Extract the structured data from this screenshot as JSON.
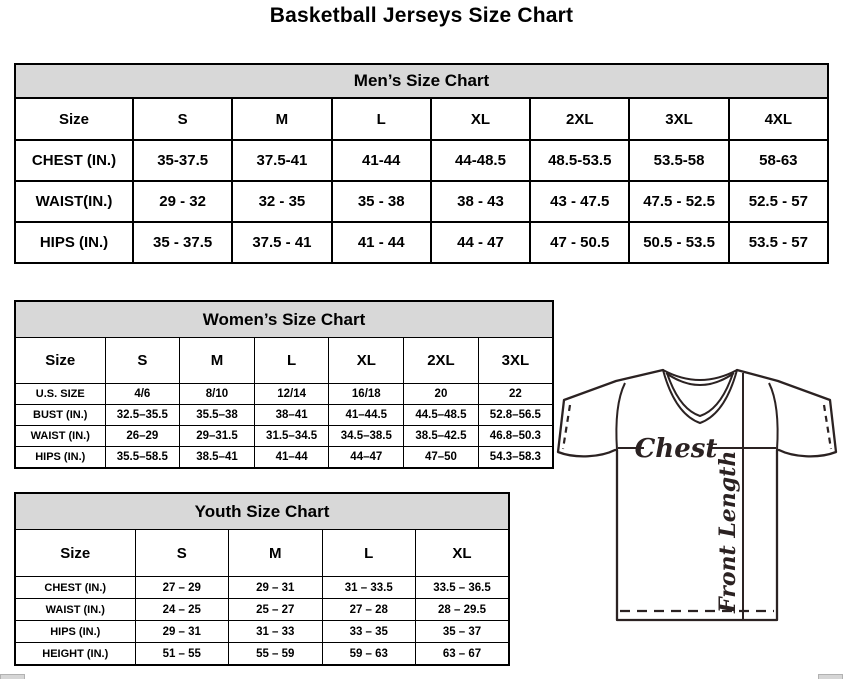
{
  "page_title": "Basketball Jerseys Size Chart",
  "tables": [
    {
      "id": "mens",
      "title": "Men’s Size Chart",
      "columns": [
        "Size",
        "S",
        "M",
        "L",
        "XL",
        "2XL",
        "3XL",
        "4XL"
      ],
      "rows": [
        {
          "label": "CHEST (IN.)",
          "values": [
            "35-37.5",
            "37.5-41",
            "41-44",
            "44-48.5",
            "48.5-53.5",
            "53.5-58",
            "58-63"
          ]
        },
        {
          "label": "WAIST(IN.)",
          "values": [
            "29 - 32",
            "32 - 35",
            "35 - 38",
            "38 - 43",
            "43 - 47.5",
            "47.5 - 52.5",
            "52.5 - 57"
          ]
        },
        {
          "label": "HIPS (IN.)",
          "values": [
            "35 - 37.5",
            "37.5 - 41",
            "41 - 44",
            "44 - 47",
            "47 - 50.5",
            "50.5 - 53.5",
            "53.5 - 57"
          ]
        }
      ]
    },
    {
      "id": "womens",
      "title": "Women’s Size Chart",
      "columns": [
        "Size",
        "S",
        "M",
        "L",
        "XL",
        "2XL",
        "3XL"
      ],
      "rows": [
        {
          "label": "U.S. SIZE",
          "values": [
            "4/6",
            "8/10",
            "12/14",
            "16/18",
            "20",
            "22"
          ]
        },
        {
          "label": "BUST (IN.)",
          "values": [
            "32.5–35.5",
            "35.5–38",
            "38–41",
            "41–44.5",
            "44.5–48.5",
            "52.8–56.5"
          ]
        },
        {
          "label": "WAIST (IN.)",
          "values": [
            "26–29",
            "29–31.5",
            "31.5–34.5",
            "34.5–38.5",
            "38.5–42.5",
            "46.8–50.3"
          ]
        },
        {
          "label": "HIPS (IN.)",
          "values": [
            "35.5–58.5",
            "38.5–41",
            "41–44",
            "44–47",
            "47–50",
            "54.3–58.3"
          ]
        }
      ]
    },
    {
      "id": "youth",
      "title": "Youth Size Chart",
      "columns": [
        "Size",
        "S",
        "M",
        "L",
        "XL"
      ],
      "rows": [
        {
          "label": "CHEST (IN.)",
          "values": [
            "27 – 29",
            "29 – 31",
            "31 – 33.5",
            "33.5 – 36.5"
          ]
        },
        {
          "label": "WAIST (IN.)",
          "values": [
            "24 – 25",
            "25 – 27",
            "27 – 28",
            "28 – 29.5"
          ]
        },
        {
          "label": "HIPS (IN.)",
          "values": [
            "29 – 31",
            "31 – 33",
            "33 – 35",
            "35 – 37"
          ]
        },
        {
          "label": "HEIGHT (IN.)",
          "values": [
            "51 – 55",
            "55 – 59",
            "59 – 63",
            "63 – 67"
          ]
        }
      ]
    }
  ],
  "diagram": {
    "chest_label": "Chest",
    "front_length_label": "Front Length"
  },
  "colors": {
    "header_bg": "#d8d8d8",
    "border": "#000000",
    "text": "#000000",
    "diagram_stroke": "#2b2222",
    "scrollbar_bg": "#d6d6d6"
  }
}
